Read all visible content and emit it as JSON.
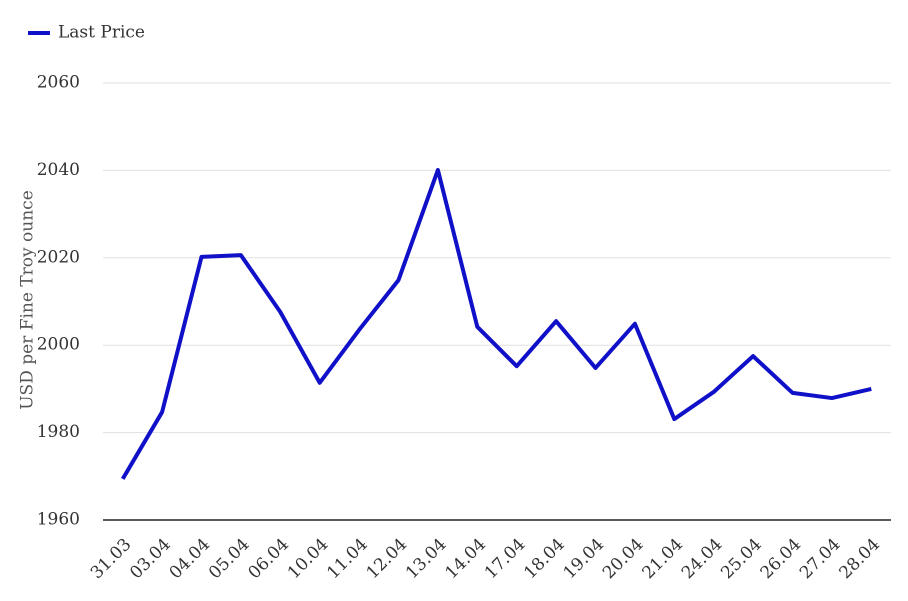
{
  "chart_data": {
    "type": "line",
    "y_label": "USD per Fine Troy ounce",
    "categories": [
      "31.03",
      "03.04",
      "04.04",
      "05.04",
      "06.04",
      "10.04",
      "11.04",
      "12.04",
      "13.04",
      "14.04",
      "17.04",
      "18.04",
      "19.04",
      "20.04",
      "21.04",
      "24.04",
      "25.04",
      "26.04",
      "27.04",
      "28.04"
    ],
    "series": [
      {
        "name": "Last Price",
        "color": "#1010c8",
        "values": [
          1969.4,
          1984.7,
          2020.2,
          2020.6,
          2007.6,
          1991.4,
          2003.5,
          2014.9,
          2040.1,
          2004.2,
          1995.2,
          2005.5,
          1994.8,
          2004.9,
          1983.1,
          1989.3,
          1997.5,
          1989.1,
          1987.9,
          1990.0
        ]
      }
    ],
    "ylim": [
      1960,
      2060
    ],
    "yticks": [
      1960,
      1980,
      2000,
      2020,
      2040,
      2060
    ],
    "grid": true,
    "legend": "top-left"
  }
}
